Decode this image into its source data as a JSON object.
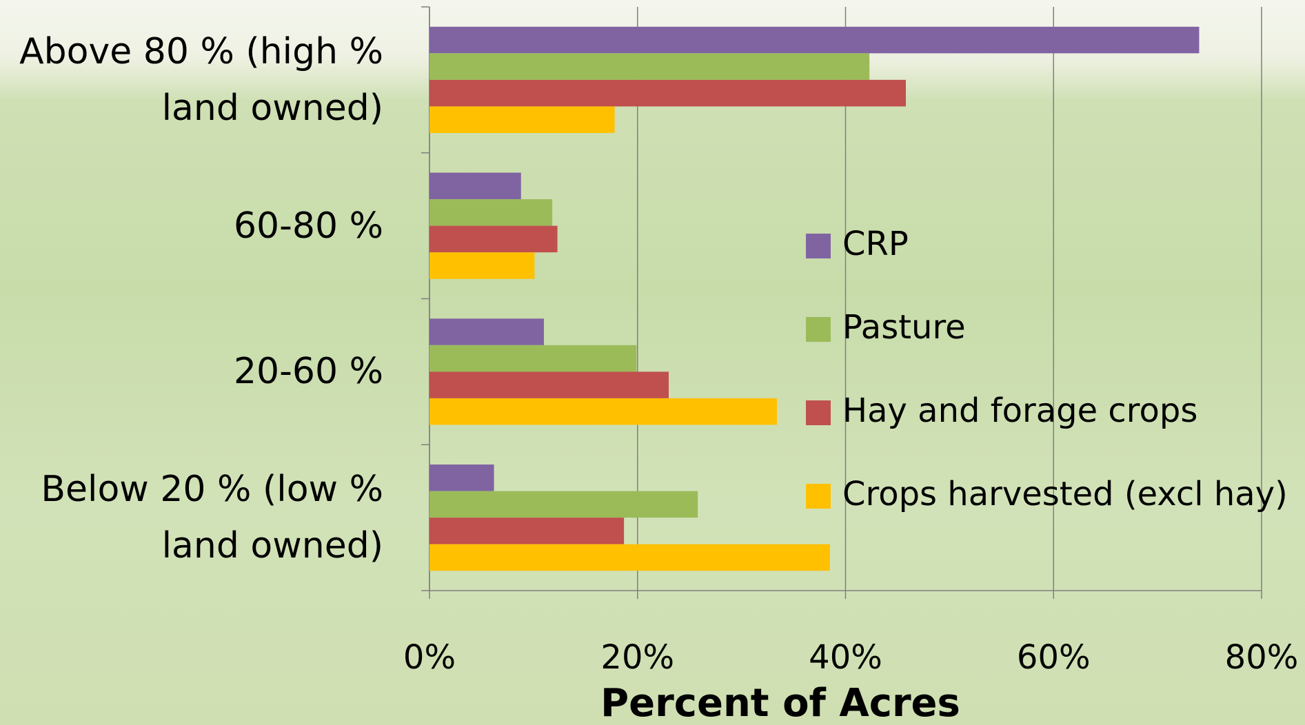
{
  "chart_data": {
    "type": "bar",
    "orientation": "horizontal",
    "x_label": "Percent of Acres",
    "categories": [
      "Above 80 %     (high % land owned)",
      "60-80 %",
      "20-60 %",
      "Below 20 % (low % land owned)"
    ],
    "series": [
      {
        "name": "CRP",
        "color": "#8064a2",
        "values": [
          74,
          8.8,
          11,
          6.2
        ]
      },
      {
        "name": "Pasture",
        "color": "#9bbb59",
        "values": [
          42.3,
          11.8,
          19.9,
          25.8
        ]
      },
      {
        "name": "Hay and forage crops",
        "color": "#c0504d",
        "values": [
          45.8,
          12.3,
          23,
          18.7
        ]
      },
      {
        "name": "Crops harvested (excl hay)",
        "color": "#ffc000",
        "values": [
          17.8,
          10.1,
          33.4,
          38.5
        ]
      }
    ],
    "xlim": [
      0,
      80
    ],
    "xticks": [
      {
        "value": 0,
        "label": "0%"
      },
      {
        "value": 20,
        "label": "20%"
      },
      {
        "value": 40,
        "label": "40%"
      },
      {
        "value": 60,
        "label": "60%"
      },
      {
        "value": 80,
        "label": "80%"
      }
    ],
    "grid": true
  }
}
